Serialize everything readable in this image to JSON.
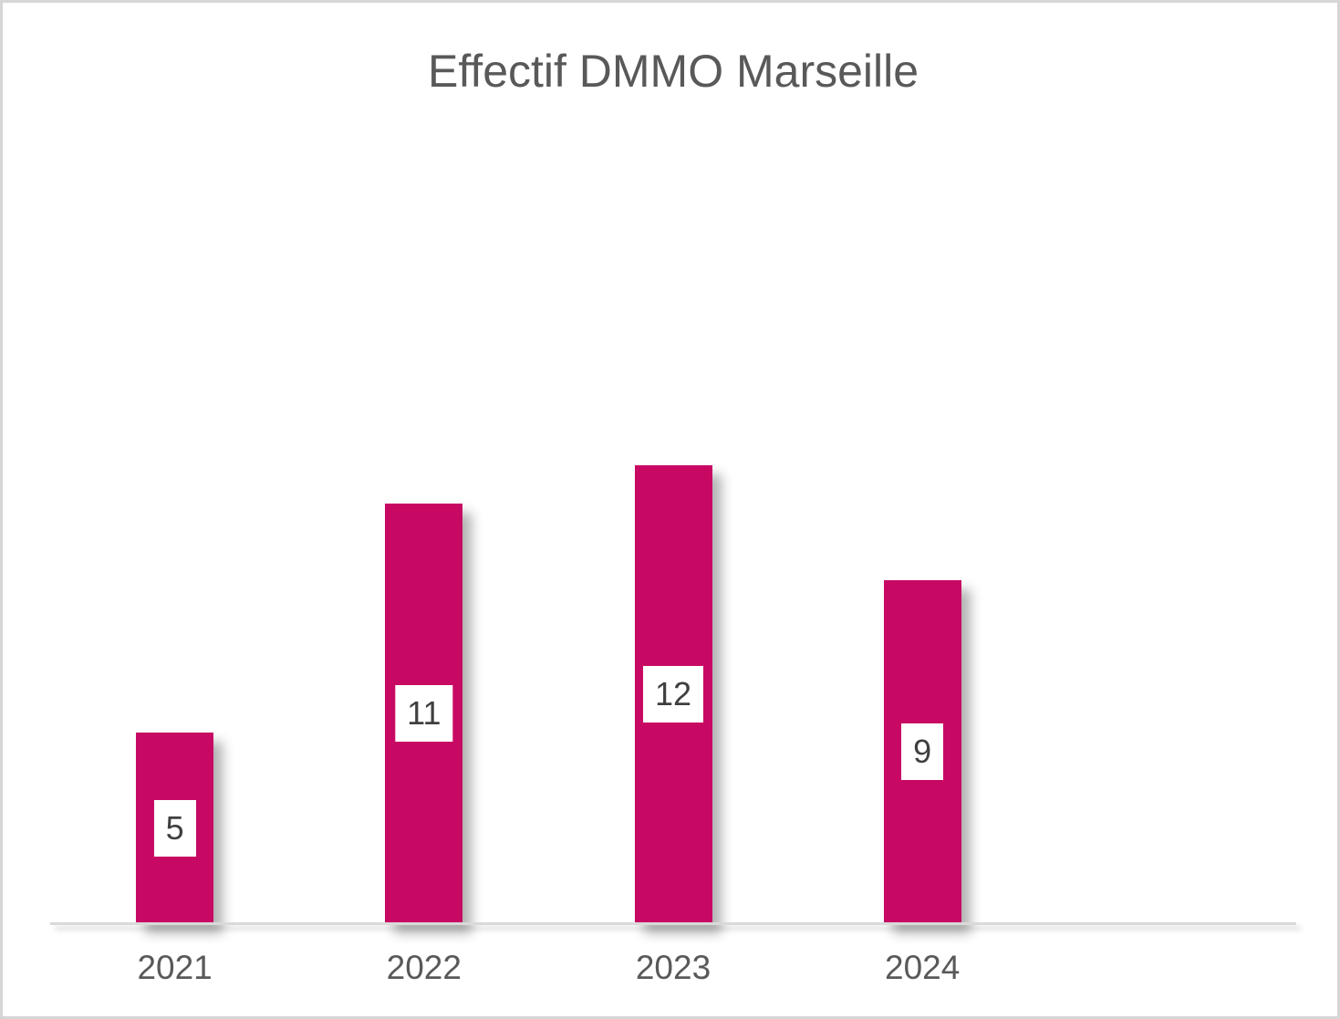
{
  "frame": {
    "border_color": "#d6d6d6",
    "background_color": "#ffffff"
  },
  "chart_data": {
    "type": "bar",
    "title": "Effectif DMMO Marseille",
    "categories": [
      "2021",
      "2022",
      "2023",
      "2024"
    ],
    "values": [
      5,
      11,
      12,
      9
    ],
    "xlabel": "",
    "ylabel": "",
    "ylim": [
      0,
      21
    ],
    "grid": false,
    "legend_position": "none",
    "y_axis_visible": false,
    "data_labels": {
      "visible": true,
      "position": "center-of-bar",
      "background": "#ffffff",
      "text_color": "#3f3f3f"
    },
    "colors": {
      "bar_fill": "#c80963",
      "axis_line": "#d9d9d9",
      "title_text": "#595959",
      "tick_text": "#595959"
    },
    "category_slots": 5
  }
}
